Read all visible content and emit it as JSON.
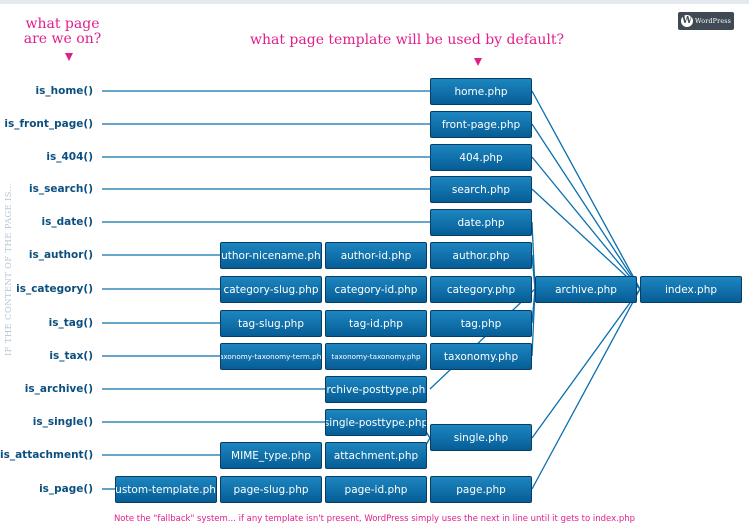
{
  "headings": {
    "left": "what page are we on?",
    "center": "what page template will be used by default?"
  },
  "side_label": "IF THE CONTENT OF THE PAGE IS...",
  "logo_text": "WordPress",
  "footer_note": "Note the \"fallback\" system... if any template isn't present, WordPress simply uses the next in line until it gets to index.php",
  "conditions": [
    "is_home()",
    "is_front_page()",
    "is_404()",
    "is_search()",
    "is_date()",
    "is_author()",
    "is_category()",
    "is_tag()",
    "is_tax()",
    "is_archive()",
    "is_single()",
    "is_attachment()",
    "is_page()"
  ],
  "templates": {
    "home": "home.php",
    "front_page": "front-page.php",
    "e404": "404.php",
    "search": "search.php",
    "date": "date.php",
    "author_nicename": "author-nicename.php",
    "author_id": "author-id.php",
    "author": "author.php",
    "category_slug": "category-slug.php",
    "category_id": "category-id.php",
    "category": "category.php",
    "archive": "archive.php",
    "index": "index.php",
    "tag_slug": "tag-slug.php",
    "tag_id": "tag-id.php",
    "tag": "tag.php",
    "taxonomy_term": "taxonomy-taxonomy-term.php",
    "taxonomy_taxonomy": "taxonomy-taxonomy.php",
    "taxonomy": "taxonomy.php",
    "archive_posttype": "archive-posttype.php",
    "single_posttype": "single-posttype.php",
    "single": "single.php",
    "mime_type": "MIME_type.php",
    "attachment": "attachment.php",
    "custom_template": "custom-template.php",
    "page_slug": "page-slug.php",
    "page_id": "page-id.php",
    "page": "page.php"
  },
  "colors": {
    "accent": "#e01f8c",
    "box": "#0a6fad",
    "label": "#0a4f7f",
    "line": "#0a6fad"
  }
}
